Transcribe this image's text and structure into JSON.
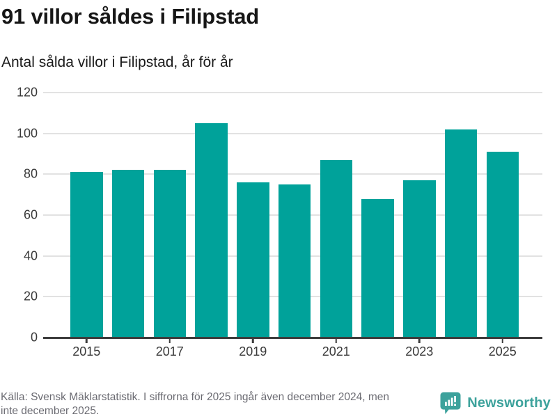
{
  "header": {
    "title": "91 villor såldes i Filipstad",
    "subtitle": "Antal sålda villor i Filipstad, år för år"
  },
  "chart_data": {
    "type": "bar",
    "title": "91 villor såldes i Filipstad",
    "subtitle": "Antal sålda villor i Filipstad, år för år",
    "categories": [
      "2015",
      "2016",
      "2017",
      "2018",
      "2019",
      "2020",
      "2021",
      "2022",
      "2023",
      "2024",
      "2025"
    ],
    "values": [
      81,
      82,
      82,
      105,
      76,
      75,
      87,
      68,
      77,
      102,
      91
    ],
    "x_tick_labels": [
      "2015",
      "2017",
      "2019",
      "2021",
      "2023",
      "2025"
    ],
    "y_ticks": [
      0,
      20,
      40,
      60,
      80,
      100,
      120
    ],
    "ylim": [
      0,
      120
    ],
    "xlabel": "",
    "ylabel": "",
    "grid": true,
    "legend": "none",
    "bar_color": "#00a29a"
  },
  "footer": {
    "source_lines": [
      "Källa: Svensk Mäklarstatistik. I siffrorna för 2025 ingår även december 2024, men",
      "inte december 2025."
    ],
    "brand": "Newsworthy"
  },
  "colors": {
    "bar": "#00a29a",
    "logo_teal": "#3da29c",
    "gridline": "#e2e2e2",
    "axis": "#3d3d3d",
    "title_text": "#161616",
    "tick_text": "#3a3a3a",
    "muted_text": "#6b6b72"
  }
}
